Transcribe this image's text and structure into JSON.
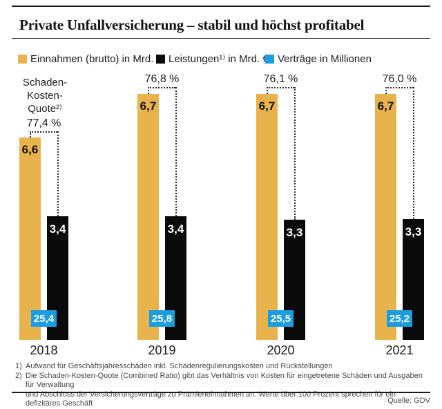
{
  "header": {
    "title": "Private Unfallversicherung – stabil und höchst profitabel"
  },
  "legend": {
    "items": [
      {
        "label": "Einnahmen (brutto) in Mrd. €",
        "color": "#E8B24C"
      },
      {
        "label": "Leistungen¹⁾ in Mrd. €",
        "color": "#0A0A0A"
      },
      {
        "label": "Verträge in Millionen",
        "color": "#1B9DDF"
      }
    ]
  },
  "chart_data": {
    "type": "bar",
    "title": "Private Unfallversicherung – stabil und höchst profitabel",
    "categories": [
      "2018",
      "2019",
      "2020",
      "2021"
    ],
    "series": [
      {
        "name": "Einnahmen (brutto) in Mrd. €",
        "values": [
          6.6,
          6.7,
          6.7,
          6.7
        ],
        "color": "#E8B24C"
      },
      {
        "name": "Leistungen in Mrd. €",
        "values": [
          3.4,
          3.4,
          3.3,
          3.3
        ],
        "color": "#0A0A0A"
      },
      {
        "name": "Verträge in Millionen",
        "values": [
          25.4,
          25.8,
          25.5,
          25.2
        ],
        "color": "#1B9DDF"
      },
      {
        "name": "Schaden-Kosten-Quote in %",
        "values": [
          77.4,
          76.8,
          76.1,
          76.0
        ]
      }
    ],
    "annotation_label": "Schaden-\nKosten-\nQuote²⁾",
    "legend_position": "top",
    "grid": false,
    "groups": [
      {
        "year": "2018",
        "einnahmen": "6,6",
        "leistungen": "3,4",
        "vertraege": "25,4",
        "quote": "77,4 %"
      },
      {
        "year": "2019",
        "einnahmen": "6,7",
        "leistungen": "3,4",
        "vertraege": "25,8",
        "quote": "76,8 %"
      },
      {
        "year": "2020",
        "einnahmen": "6,7",
        "leistungen": "3,3",
        "vertraege": "25,5",
        "quote": "76,1 %"
      },
      {
        "year": "2021",
        "einnahmen": "6,7",
        "leistungen": "3,3",
        "vertraege": "25,2",
        "quote": "76,0 %"
      }
    ]
  },
  "footnotes": [
    {
      "marker": "1)",
      "text": "Aufwand für Geschäftsjahresschäden inkl. Schadenregulierungskosten und Rückstellungen"
    },
    {
      "marker": "2)",
      "text": "Die Schaden-Kosten-Quote (Combined Ratio) gibt das Verhältnis von Kosten für eingetretene Schäden und Ausgaben für Verwaltung\nund Abschluss der Versicherungsverträge zu Prämieneinnahmen an. Werte über 100 Prozent sprechen für ein defizitäres Geschäft"
    }
  ],
  "source": "Quelle: GDV"
}
